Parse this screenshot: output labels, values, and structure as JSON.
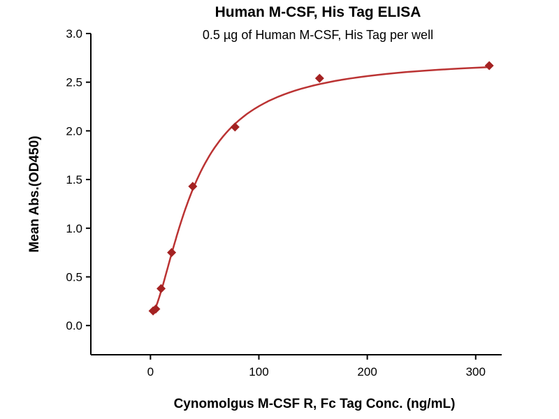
{
  "chart_data": {
    "type": "scatter",
    "title": "Human M-CSF, His Tag ELISA",
    "subtitle": "0.5 µg of Human M-CSF, His Tag per well",
    "xlabel": "Cynomolgus M-CSF R, Fc Tag Conc. (ng/mL)",
    "ylabel": "Mean Abs.(OD450)",
    "xlim": [
      -55,
      324
    ],
    "ylim": [
      -0.3,
      3.0
    ],
    "x_ticks": [
      0,
      100,
      200,
      300
    ],
    "x_tick_labels": [
      "0",
      "100",
      "200",
      "300"
    ],
    "y_ticks": [
      0,
      0.5,
      1,
      1.5,
      2,
      2.5,
      3
    ],
    "y_tick_labels": [
      "0.0",
      "0.5",
      "1.0",
      "1.5",
      "2.0",
      "2.5",
      "3.0"
    ],
    "grid": false,
    "legend": false,
    "points": {
      "x": [
        2.4,
        4.9,
        9.8,
        19.5,
        39,
        78,
        156,
        312.5
      ],
      "y": [
        0.15,
        0.17,
        0.38,
        0.75,
        1.43,
        2.04,
        2.54,
        2.67
      ]
    },
    "fit_4pl": {
      "bottom": 0.1,
      "top": 2.75,
      "ec50": 40,
      "hill": 1.6
    },
    "colors": {
      "curve": "#BB3333",
      "point": "#A42222",
      "axis": "#000000",
      "text": "#000000"
    }
  }
}
